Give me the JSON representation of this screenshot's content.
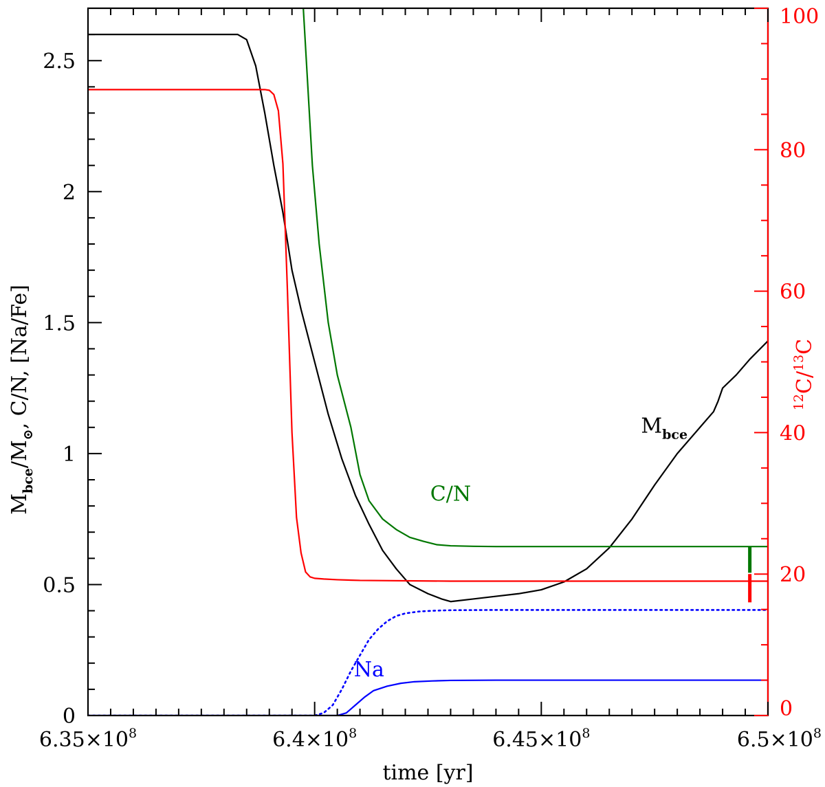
{
  "chart_data": {
    "type": "line",
    "xlabel": "time [yr]",
    "ylabel_left": {
      "parts": [
        "M",
        "bce",
        "/M",
        "⊙",
        ", C/N, [Na/Fe]"
      ]
    },
    "ylabel_right": {
      "parts": [
        "12",
        "C/",
        "13",
        "C"
      ]
    },
    "xlim": [
      635000000,
      650000000
    ],
    "ylim_left": [
      0,
      2.7
    ],
    "ylim_right": [
      0,
      100
    ],
    "x_ticks": [
      {
        "value": 635000000,
        "base": "6.35×10",
        "exp": "8"
      },
      {
        "value": 640000000,
        "base": "6.4×10",
        "exp": "8"
      },
      {
        "value": 645000000,
        "base": "6.45×10",
        "exp": "8"
      },
      {
        "value": 650000000,
        "base": "6.5×10",
        "exp": "8"
      }
    ],
    "y_ticks_left": [
      {
        "value": 0,
        "label": "0"
      },
      {
        "value": 0.5,
        "label": "0.5"
      },
      {
        "value": 1,
        "label": "1"
      },
      {
        "value": 1.5,
        "label": "1.5"
      },
      {
        "value": 2,
        "label": "2"
      },
      {
        "value": 2.5,
        "label": "2.5"
      }
    ],
    "y_ticks_right": [
      {
        "value": 0,
        "label": "0"
      },
      {
        "value": 20,
        "label": "20"
      },
      {
        "value": 40,
        "label": "40"
      },
      {
        "value": 60,
        "label": "60"
      },
      {
        "value": 80,
        "label": "80"
      },
      {
        "value": 100,
        "label": "100"
      }
    ],
    "colors": {
      "axis_left": "#000000",
      "axis_right": "#ff0000",
      "mbce": "#000000",
      "cn": "#007700",
      "c12c13": "#ff0000",
      "na": "#0000ff"
    },
    "annotations": {
      "mbce": {
        "main": "M",
        "sub": "bce",
        "x": 647200000,
        "y": 1.08
      },
      "cn": {
        "text": "C/N",
        "x": 643000000,
        "y": 0.82
      },
      "na": {
        "text": "Na",
        "x": 641200000,
        "y": 0.15
      }
    },
    "series": [
      {
        "name": "M_bce",
        "axis": "left",
        "style": "solid",
        "x": [
          635000000,
          638000000,
          638300000,
          638500000,
          638700000,
          638900000,
          639100000,
          639300000,
          639500000,
          639700000,
          640000000,
          640300000,
          640600000,
          640900000,
          641200000,
          641500000,
          641800000,
          642100000,
          642500000,
          642800000,
          643000000,
          643500000,
          644000000,
          644500000,
          645000000,
          645500000,
          646000000,
          646500000,
          647000000,
          647500000,
          648000000,
          648500000,
          648800000,
          648900000,
          649000000,
          649300000,
          649600000,
          650000000
        ],
        "y": [
          2.6,
          2.6,
          2.6,
          2.58,
          2.48,
          2.3,
          2.1,
          1.92,
          1.7,
          1.55,
          1.35,
          1.15,
          0.98,
          0.84,
          0.73,
          0.63,
          0.56,
          0.5,
          0.465,
          0.445,
          0.435,
          0.445,
          0.455,
          0.465,
          0.48,
          0.51,
          0.56,
          0.64,
          0.75,
          0.88,
          1.0,
          1.1,
          1.16,
          1.2,
          1.25,
          1.3,
          1.36,
          1.43
        ]
      },
      {
        "name": "C/N",
        "axis": "left",
        "style": "solid",
        "x": [
          639750000,
          639850000,
          639950000,
          640100000,
          640300000,
          640500000,
          640800000,
          641000000,
          641200000,
          641500000,
          641800000,
          642100000,
          642400000,
          642700000,
          643000000,
          643500000,
          644000000,
          645000000,
          646000000,
          647000000,
          648000000,
          649000000,
          650000000
        ],
        "y": [
          2.7,
          2.4,
          2.1,
          1.8,
          1.5,
          1.3,
          1.1,
          0.92,
          0.82,
          0.75,
          0.71,
          0.68,
          0.665,
          0.652,
          0.648,
          0.646,
          0.645,
          0.645,
          0.645,
          0.645,
          0.645,
          0.645,
          0.645
        ]
      },
      {
        "name": "12C/13C",
        "axis": "right",
        "style": "solid",
        "x": [
          635000000,
          638900000,
          639000000,
          639100000,
          639200000,
          639300000,
          639400000,
          639500000,
          639600000,
          639700000,
          639800000,
          639900000,
          640000000,
          640200000,
          640500000,
          641000000,
          643000000,
          645000000,
          647000000,
          649000000,
          650000000
        ],
        "y": [
          88.5,
          88.5,
          88.4,
          87.8,
          85.5,
          78,
          60,
          40,
          28,
          23,
          20.3,
          19.6,
          19.4,
          19.3,
          19.2,
          19.1,
          19.0,
          19.0,
          19.0,
          19.0,
          19.0
        ]
      },
      {
        "name": "Na dotted",
        "axis": "left",
        "style": "dotted",
        "x": [
          635000000,
          640000000,
          640200000,
          640400000,
          640600000,
          640800000,
          641000000,
          641200000,
          641400000,
          641600000,
          641800000,
          642000000,
          642300000,
          642600000,
          643000000,
          644000000,
          646000000,
          648000000,
          650000000
        ],
        "y": [
          0,
          0,
          0.01,
          0.04,
          0.1,
          0.17,
          0.23,
          0.29,
          0.33,
          0.36,
          0.38,
          0.39,
          0.397,
          0.4,
          0.402,
          0.403,
          0.403,
          0.403,
          0.403
        ]
      },
      {
        "name": "Na solid",
        "axis": "left",
        "style": "solid",
        "x": [
          635000000,
          640500000,
          640700000,
          640900000,
          641100000,
          641300000,
          641600000,
          641900000,
          642200000,
          642600000,
          643000000,
          644000000,
          646000000,
          648000000,
          650000000
        ],
        "y": [
          0,
          0,
          0.01,
          0.04,
          0.07,
          0.095,
          0.112,
          0.123,
          0.129,
          0.132,
          0.134,
          0.135,
          0.135,
          0.135,
          0.135
        ]
      }
    ],
    "error_bars": [
      {
        "color_key": "cn",
        "axis": "left",
        "x": 649600000,
        "y_low": 0.545,
        "y_high": 0.645
      },
      {
        "color_key": "c12c13",
        "axis": "right",
        "x": 649600000,
        "y_low": 16,
        "y_high": 20
      }
    ]
  }
}
